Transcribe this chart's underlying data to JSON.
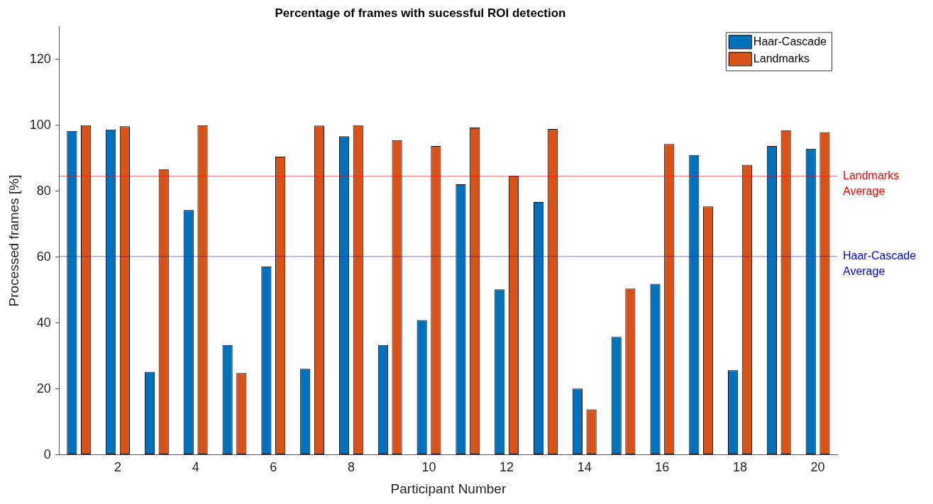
{
  "chart_data": {
    "type": "bar",
    "title": "Percentage of frames with sucessful ROI detection",
    "xlabel": "Participant Number",
    "ylabel": "Processed frames [%]",
    "categories": [
      null,
      "2",
      null,
      "4",
      null,
      "6",
      null,
      "8",
      null,
      "10",
      null,
      "12",
      null,
      "14",
      null,
      "16",
      null,
      "18",
      null,
      "20"
    ],
    "series": [
      {
        "name": "Haar-Cascade",
        "color": "#0072bd",
        "values": [
          98.3,
          98.7,
          25.2,
          74.3,
          33.3,
          57.2,
          26.1,
          96.7,
          33.3,
          40.9,
          82.1,
          50.2,
          76.7,
          20.1,
          35.8,
          51.9,
          91.0,
          25.7,
          93.7,
          92.9
        ]
      },
      {
        "name": "Landmarks",
        "color": "#d95319",
        "values": [
          100,
          99.7,
          86.7,
          100,
          24.8,
          90.5,
          99.9,
          100,
          95.5,
          93.7,
          99.3,
          84.7,
          98.9,
          13.8,
          50.4,
          94.3,
          75.4,
          88.0,
          98.5,
          97.9
        ]
      }
    ],
    "ylim": [
      0,
      130
    ],
    "yticks": [
      0,
      20,
      40,
      60,
      80,
      100,
      120
    ],
    "grid": false,
    "legend": "top right",
    "ref_lines": [
      {
        "axis": "y",
        "value": 84.6,
        "label": "Landmarks Average",
        "color": "#ff0000"
      },
      {
        "axis": "y",
        "value": 60.2,
        "label": "Haar-Cascade Average",
        "color": "#0000ff"
      }
    ]
  }
}
